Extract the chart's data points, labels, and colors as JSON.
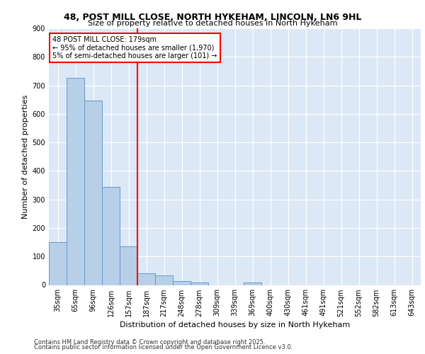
{
  "title1": "48, POST MILL CLOSE, NORTH HYKEHAM, LINCOLN, LN6 9HL",
  "title2": "Size of property relative to detached houses in North Hykeham",
  "xlabel": "Distribution of detached houses by size in North Hykeham",
  "ylabel": "Number of detached properties",
  "bins": [
    "35sqm",
    "65sqm",
    "96sqm",
    "126sqm",
    "157sqm",
    "187sqm",
    "217sqm",
    "248sqm",
    "278sqm",
    "309sqm",
    "339sqm",
    "369sqm",
    "400sqm",
    "430sqm",
    "461sqm",
    "491sqm",
    "521sqm",
    "552sqm",
    "582sqm",
    "613sqm",
    "643sqm"
  ],
  "values": [
    150,
    725,
    648,
    343,
    135,
    42,
    33,
    13,
    8,
    0,
    0,
    8,
    0,
    0,
    0,
    0,
    0,
    0,
    0,
    0,
    0
  ],
  "bar_color": "#b8cfe8",
  "bar_edge_color": "#6699cc",
  "red_line_bin_index": 5,
  "annotation_line1": "48 POST MILL CLOSE: 179sqm",
  "annotation_line2": "← 95% of detached houses are smaller (1,970)",
  "annotation_line3": "5% of semi-detached houses are larger (101) →",
  "footer1": "Contains HM Land Registry data © Crown copyright and database right 2025.",
  "footer2": "Contains public sector information licensed under the Open Government Licence v3.0.",
  "bg_color": "#dce8f5",
  "plot_bg_color": "#dce8f5",
  "ylim": [
    0,
    900
  ],
  "yticks": [
    0,
    100,
    200,
    300,
    400,
    500,
    600,
    700,
    800,
    900
  ],
  "title1_fontsize": 9,
  "title2_fontsize": 8,
  "annotation_fontsize": 7,
  "ylabel_fontsize": 8,
  "xlabel_fontsize": 8,
  "tick_fontsize": 7,
  "footer_fontsize": 6
}
